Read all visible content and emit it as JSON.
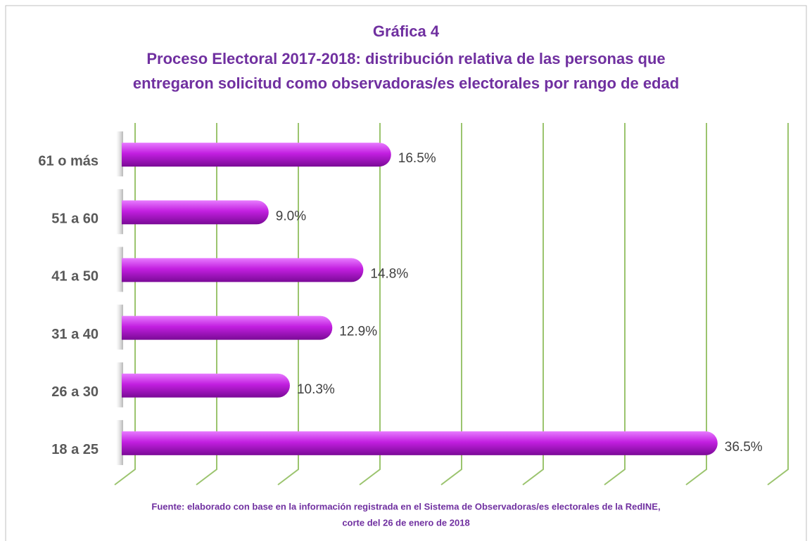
{
  "chart_data": {
    "type": "hbar",
    "title": [
      "Gráfica 4",
      "Proceso Electoral 2017-2018: distribución relativa de las personas que",
      "entregaron solicitud como observadoras/es electorales por rango de edad"
    ],
    "source": [
      "Fuente: elaborado con base en la información registrada en el Sistema de Observadoras/es electorales de la RedINE,",
      "corte del 26 de enero de 2018"
    ],
    "categories": [
      "18 a 25",
      "26 a 30",
      "31 a 40",
      "41 a 50",
      "51 a 60",
      "61 o más"
    ],
    "values": [
      36.5,
      10.3,
      12.9,
      14.8,
      9.0,
      16.5
    ],
    "value_labels": [
      "36.5%",
      "10.3%",
      "12.9%",
      "14.8%",
      "9.0%",
      "16.5%"
    ],
    "color": "#c21fe0",
    "xlim": [
      0,
      40
    ],
    "xticks": [
      0,
      5,
      10,
      15,
      20,
      25,
      30,
      35,
      40
    ],
    "grid": true,
    "grid_color": "#9bc46e"
  }
}
